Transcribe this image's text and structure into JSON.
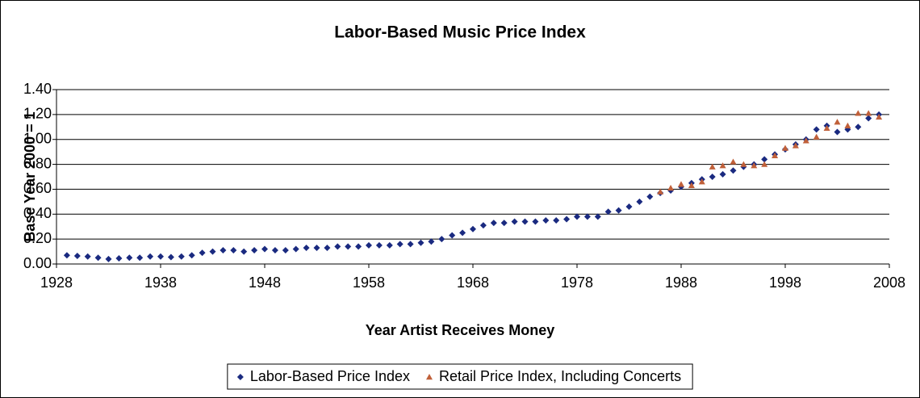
{
  "chart_data": {
    "type": "scatter",
    "title": "Labor-Based Music Price Index",
    "x_label": "Year Artist Receives Money",
    "y_label": "Base Year 2000 = 1",
    "xlim": [
      1928,
      2008
    ],
    "xticks": [
      1928,
      1938,
      1948,
      1958,
      1968,
      1978,
      1988,
      1998,
      2008
    ],
    "ylim": [
      0,
      1.4
    ],
    "yticks": [
      {
        "value": 0,
        "label": "0.00"
      },
      {
        "value": 0.2,
        "label": "0.20"
      },
      {
        "value": 0.4,
        "label": "0.40"
      },
      {
        "value": 0.6,
        "label": "0.60"
      },
      {
        "value": 0.8,
        "label": "0.80"
      },
      {
        "value": 1.0,
        "label": "1.00"
      },
      {
        "value": 1.2,
        "label": "1.20"
      },
      {
        "value": 1.4,
        "label": "1.40"
      }
    ],
    "grid": true,
    "legend": "bottom",
    "series": [
      {
        "name": "Labor-Based Price Index",
        "color": "#1a2a80",
        "marker": "diamond",
        "x": [
          1929,
          1930,
          1931,
          1932,
          1933,
          1934,
          1935,
          1936,
          1937,
          1938,
          1939,
          1940,
          1941,
          1942,
          1943,
          1944,
          1945,
          1946,
          1947,
          1948,
          1949,
          1950,
          1951,
          1952,
          1953,
          1954,
          1955,
          1956,
          1957,
          1958,
          1959,
          1960,
          1961,
          1962,
          1963,
          1964,
          1965,
          1966,
          1967,
          1968,
          1969,
          1970,
          1971,
          1972,
          1973,
          1974,
          1975,
          1976,
          1977,
          1978,
          1979,
          1980,
          1981,
          1982,
          1983,
          1984,
          1985,
          1986,
          1987,
          1988,
          1989,
          1990,
          1991,
          1992,
          1993,
          1994,
          1995,
          1996,
          1997,
          1998,
          1999,
          2000,
          2001,
          2002,
          2003,
          2004,
          2005,
          2006,
          2007
        ],
        "values": [
          0.07,
          0.065,
          0.06,
          0.05,
          0.04,
          0.045,
          0.05,
          0.05,
          0.06,
          0.06,
          0.055,
          0.06,
          0.07,
          0.09,
          0.1,
          0.11,
          0.11,
          0.1,
          0.11,
          0.12,
          0.11,
          0.11,
          0.12,
          0.13,
          0.13,
          0.13,
          0.14,
          0.14,
          0.14,
          0.15,
          0.15,
          0.15,
          0.16,
          0.16,
          0.17,
          0.18,
          0.2,
          0.23,
          0.25,
          0.28,
          0.31,
          0.33,
          0.33,
          0.34,
          0.34,
          0.34,
          0.35,
          0.35,
          0.36,
          0.38,
          0.38,
          0.38,
          0.42,
          0.43,
          0.46,
          0.5,
          0.54,
          0.57,
          0.59,
          0.62,
          0.65,
          0.68,
          0.7,
          0.72,
          0.75,
          0.78,
          0.8,
          0.84,
          0.88,
          0.92,
          0.96,
          1.0,
          1.08,
          1.11,
          1.06,
          1.08,
          1.1,
          1.17,
          1.2
        ]
      },
      {
        "name": "Retail Price Index, Including Concerts",
        "color": "#c0603a",
        "marker": "triangle",
        "x": [
          1986,
          1987,
          1988,
          1989,
          1990,
          1991,
          1992,
          1993,
          1994,
          1995,
          1996,
          1997,
          1998,
          1999,
          2000,
          2001,
          2002,
          2003,
          2004,
          2005,
          2006,
          2007
        ],
        "values": [
          0.58,
          0.61,
          0.64,
          0.63,
          0.66,
          0.78,
          0.79,
          0.82,
          0.8,
          0.79,
          0.8,
          0.87,
          0.93,
          0.95,
          0.99,
          1.02,
          1.09,
          1.14,
          1.11,
          1.21,
          1.21,
          1.18
        ]
      }
    ]
  }
}
